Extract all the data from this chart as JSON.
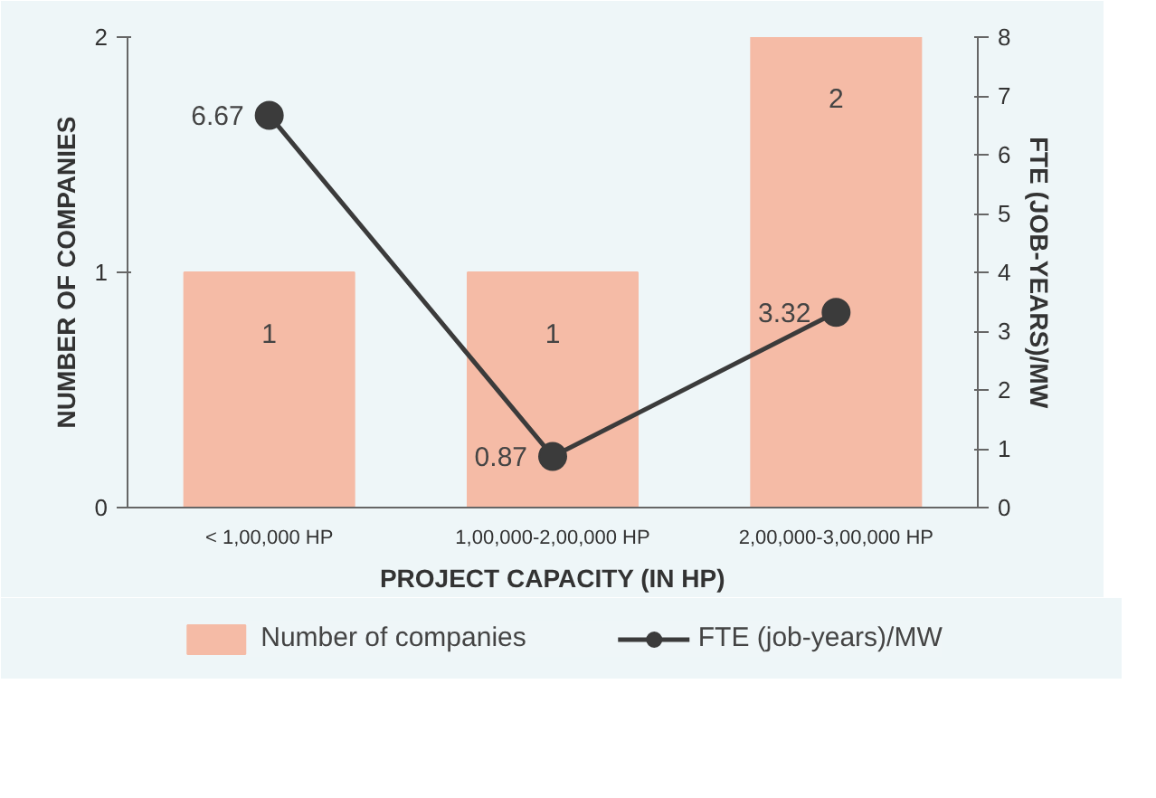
{
  "chart_data": {
    "type": "bar",
    "xlabel": "PROJECT CAPACITY (IN HP)",
    "ylabel": "NUMBER OF COMPANIES",
    "y2label": "FTE (JOB-YEARS)/MW",
    "categories": [
      "< 1,00,000 HP",
      "1,00,000-2,00,000 HP",
      "2,00,000-3,00,000 HP"
    ],
    "series": [
      {
        "name": "Number of companies",
        "color": "#f5bba6",
        "values": [
          1,
          1,
          2
        ]
      },
      {
        "name": "FTE (job-years)/MW",
        "type": "line",
        "axis": "y2",
        "color": "#3b3b3b",
        "values": [
          6.67,
          0.87,
          3.32
        ]
      }
    ],
    "ylim": [
      0,
      2
    ],
    "yticks": [
      0,
      1,
      2
    ],
    "y2lim": [
      0,
      8
    ],
    "y2ticks": [
      0,
      1,
      2,
      3,
      4,
      5,
      6,
      7,
      8
    ],
    "data_labels": true,
    "legend": "bottom",
    "marker": "circle",
    "grid": false
  }
}
